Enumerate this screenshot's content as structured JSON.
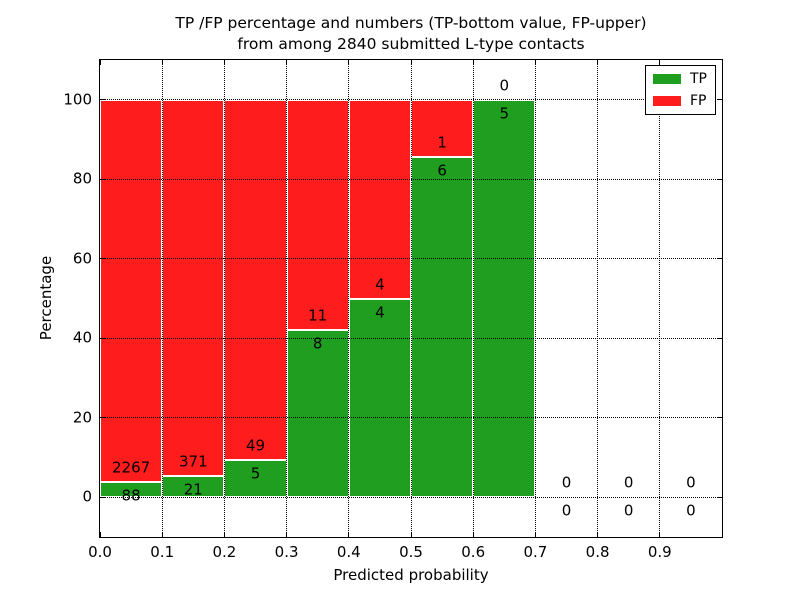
{
  "figure": {
    "title_line1": "TP /FP percentage and numbers (TP-bottom value, FP-upper)",
    "title_line2": "from among 2840 submitted L-type contacts",
    "xlabel": "Predicted probability",
    "ylabel": "Percentage"
  },
  "colors": {
    "tp": "#1f9e1f",
    "fp": "#ff1c1c",
    "bar_edge": "#ffffff",
    "grid": "#000000",
    "text": "#000000"
  },
  "legend": {
    "position": "upper right",
    "entries": [
      {
        "label": "TP",
        "color_key": "tp"
      },
      {
        "label": "FP",
        "color_key": "fp"
      }
    ]
  },
  "chart_data": {
    "type": "bar",
    "stacked": true,
    "title": "TP /FP percentage and numbers (TP-bottom value, FP-upper) from among 2840 submitted L-type contacts",
    "xlabel": "Predicted probability",
    "ylabel": "Percentage",
    "xlim": [
      0.0,
      1.0
    ],
    "ylim": [
      -10,
      110
    ],
    "x_ticks": [
      "0.0",
      "0.1",
      "0.2",
      "0.3",
      "0.4",
      "0.5",
      "0.6",
      "0.7",
      "0.8",
      "0.9"
    ],
    "y_ticks": [
      0,
      20,
      40,
      60,
      80,
      100
    ],
    "grid": true,
    "grid_style": "dotted",
    "bin_width": 0.1,
    "total_contacts": 2840,
    "series_note": "TP count shown below segment boundary, FP count above",
    "bins": [
      {
        "x_start": 0.0,
        "x_end": 0.1,
        "tp_count": 88,
        "fp_count": 2267,
        "tp_pct": 3.74,
        "fp_pct": 96.26
      },
      {
        "x_start": 0.1,
        "x_end": 0.2,
        "tp_count": 21,
        "fp_count": 371,
        "tp_pct": 5.36,
        "fp_pct": 94.64
      },
      {
        "x_start": 0.2,
        "x_end": 0.3,
        "tp_count": 5,
        "fp_count": 49,
        "tp_pct": 9.26,
        "fp_pct": 90.74
      },
      {
        "x_start": 0.3,
        "x_end": 0.4,
        "tp_count": 8,
        "fp_count": 11,
        "tp_pct": 42.11,
        "fp_pct": 57.89
      },
      {
        "x_start": 0.4,
        "x_end": 0.5,
        "tp_count": 4,
        "fp_count": 4,
        "tp_pct": 50.0,
        "fp_pct": 50.0
      },
      {
        "x_start": 0.5,
        "x_end": 0.6,
        "tp_count": 6,
        "fp_count": 1,
        "tp_pct": 85.71,
        "fp_pct": 14.29
      },
      {
        "x_start": 0.6,
        "x_end": 0.7,
        "tp_count": 5,
        "fp_count": 0,
        "tp_pct": 100.0,
        "fp_pct": 0.0
      },
      {
        "x_start": 0.7,
        "x_end": 0.8,
        "tp_count": 0,
        "fp_count": 0,
        "tp_pct": 0.0,
        "fp_pct": 0.0
      },
      {
        "x_start": 0.8,
        "x_end": 0.9,
        "tp_count": 0,
        "fp_count": 0,
        "tp_pct": 0.0,
        "fp_pct": 0.0
      },
      {
        "x_start": 0.9,
        "x_end": 1.0,
        "tp_count": 0,
        "fp_count": 0,
        "tp_pct": 0.0,
        "fp_pct": 0.0
      }
    ]
  }
}
